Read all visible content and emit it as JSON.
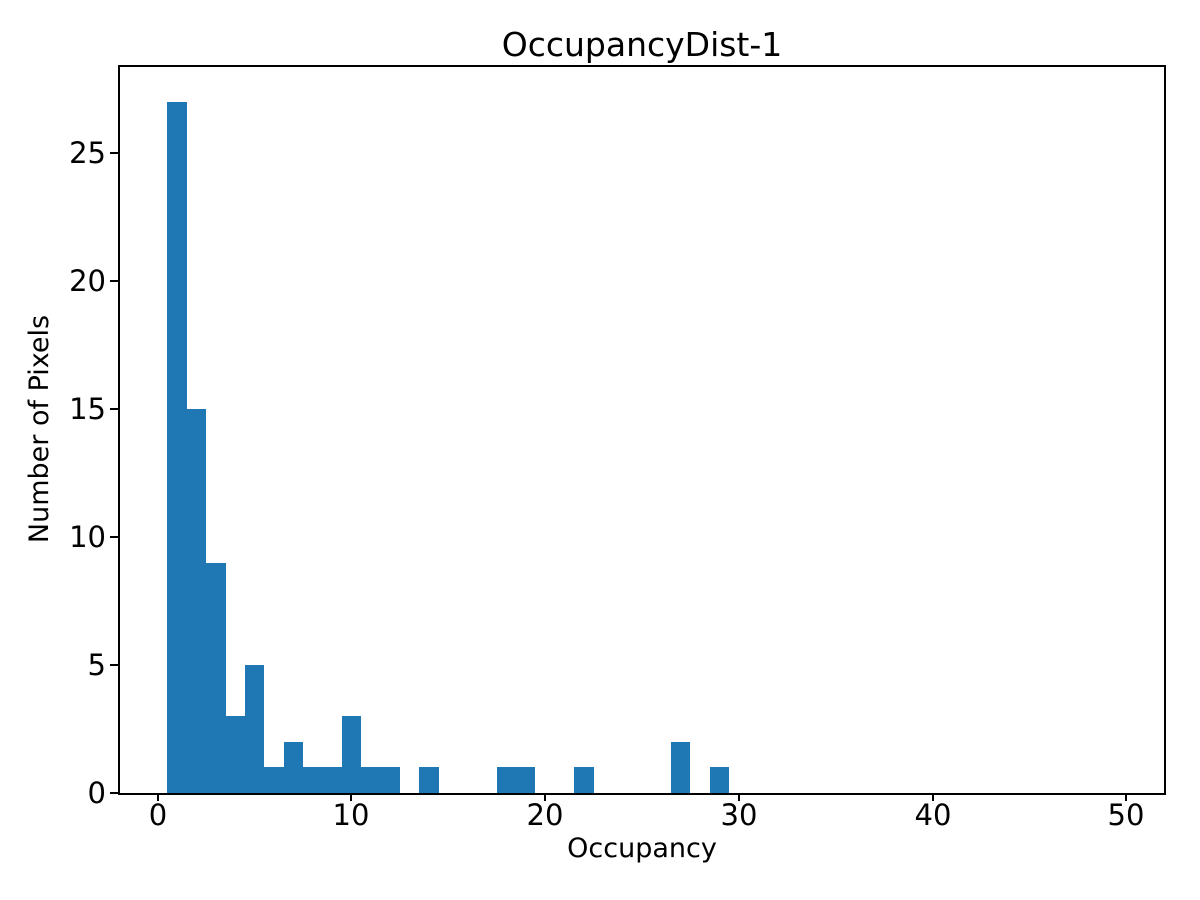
{
  "figure": {
    "background_color": "#ffffff"
  },
  "chart_data": {
    "type": "bar",
    "subtype": "histogram",
    "title": "OccupancyDist-1",
    "xlabel": "Occupancy",
    "ylabel": "Number of Pixels",
    "bin_centers": [
      1,
      2,
      3,
      4,
      5,
      6,
      7,
      8,
      9,
      10,
      11,
      12,
      13,
      14,
      15,
      16,
      17,
      18,
      19,
      20,
      21,
      22,
      23,
      24,
      25,
      26,
      27,
      28,
      29
    ],
    "counts": [
      27,
      15,
      9,
      3,
      5,
      1,
      2,
      1,
      1,
      3,
      1,
      1,
      0,
      1,
      0,
      0,
      0,
      1,
      1,
      0,
      0,
      1,
      0,
      0,
      0,
      0,
      2,
      0,
      1
    ],
    "bin_width": 1,
    "xticks": [
      0,
      10,
      20,
      30,
      40,
      50
    ],
    "yticks": [
      0,
      5,
      10,
      15,
      20,
      25
    ],
    "xlim": [
      -1.95,
      51.95
    ],
    "ylim": [
      0,
      28.35
    ],
    "bar_color": "#1f77b4",
    "axis_color": "#000000",
    "text_color": "#000000",
    "grid": false,
    "legend": false
  }
}
